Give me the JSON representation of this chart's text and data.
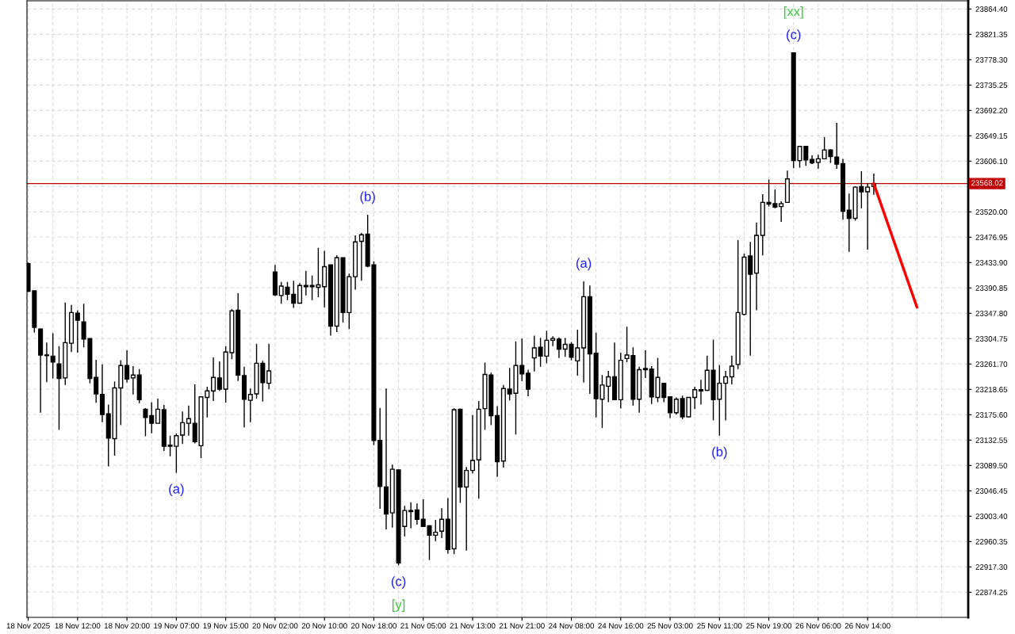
{
  "chart_data": {
    "type": "candlestick",
    "categories": [
      "18 Nov 2025",
      null,
      null,
      null,
      null,
      null,
      null,
      null,
      "18 Nov 12:00",
      null,
      null,
      null,
      null,
      null,
      null,
      null,
      "18 Nov 20:00",
      null,
      null,
      null,
      null,
      null,
      null,
      null,
      "19 Nov 07:00",
      null,
      null,
      null,
      null,
      null,
      null,
      null,
      "19 Nov 15:00",
      null,
      null,
      null,
      null,
      null,
      null,
      null,
      "20 Nov 02:00",
      null,
      null,
      null,
      null,
      null,
      null,
      null,
      "20 Nov 10:00",
      null,
      null,
      null,
      null,
      null,
      null,
      null,
      "20 Nov 18:00",
      null,
      null,
      null,
      null,
      null,
      null,
      null,
      "21 Nov 05:00",
      null,
      null,
      null,
      null,
      null,
      null,
      null,
      "21 Nov 13:00",
      null,
      null,
      null,
      null,
      null,
      null,
      null,
      "21 Nov 21:00",
      null,
      null,
      null,
      null,
      null,
      null,
      null,
      "24 Nov 08:00",
      null,
      null,
      null,
      null,
      null,
      null,
      null,
      "24 Nov 16:00",
      null,
      null,
      null,
      null,
      null,
      null,
      null,
      "25 Nov 03:00",
      null,
      null,
      null,
      null,
      null,
      null,
      null,
      "25 Nov 11:00",
      null,
      null,
      null,
      null,
      null,
      null,
      null,
      "25 Nov 19:00",
      null,
      null,
      null,
      null,
      null,
      null,
      null,
      "26 Nov 06:00",
      null,
      null,
      null,
      null,
      null,
      null,
      null,
      "26 Nov 14:00",
      null,
      null,
      null,
      null,
      null,
      null,
      null,
      null,
      null,
      null,
      null,
      null,
      null,
      null,
      null
    ],
    "ohlc": [
      [
        23432,
        23434,
        23384,
        23385
      ],
      [
        23386,
        23386,
        23315,
        23324
      ],
      [
        23321,
        23322,
        23179,
        23277
      ],
      [
        23277,
        23298,
        23231,
        23276
      ],
      [
        23275,
        23314,
        23237,
        23265
      ],
      [
        23262,
        23292,
        23150,
        23237
      ],
      [
        23238,
        23366,
        23226,
        23298
      ],
      [
        23297,
        23362,
        23282,
        23349
      ],
      [
        23348,
        23353,
        23281,
        23336
      ],
      [
        23333,
        23364,
        23290,
        23304
      ],
      [
        23305,
        23305,
        23229,
        23237
      ],
      [
        23239,
        23269,
        23196,
        23211
      ],
      [
        23210,
        23261,
        23163,
        23176
      ],
      [
        23177,
        23193,
        23088,
        23136
      ],
      [
        23135,
        23232,
        23106,
        23221
      ],
      [
        23221,
        23268,
        23158,
        23259
      ],
      [
        23259,
        23285,
        23230,
        23236
      ],
      [
        23238,
        23258,
        23210,
        23243
      ],
      [
        23243,
        23253,
        23195,
        23201
      ],
      [
        23185,
        23187,
        23139,
        23171
      ],
      [
        23174,
        23197,
        23144,
        23161
      ],
      [
        23161,
        23203,
        23161,
        23185
      ],
      [
        23184,
        23192,
        23114,
        23122
      ],
      [
        23124,
        23140,
        23105,
        23122
      ],
      [
        23122,
        23144,
        23077,
        23140
      ],
      [
        23141,
        23181,
        23126,
        23162
      ],
      [
        23161,
        23191,
        23140,
        23169
      ],
      [
        23161,
        23227,
        23127,
        23130
      ],
      [
        23123,
        23207,
        23102,
        23206
      ],
      [
        23205,
        23223,
        23171,
        23216
      ],
      [
        23216,
        23273,
        23199,
        23239
      ],
      [
        23238,
        23266,
        23216,
        23219
      ],
      [
        23219,
        23292,
        23196,
        23282
      ],
      [
        23281,
        23355,
        23270,
        23352
      ],
      [
        23353,
        23382,
        23233,
        23243
      ],
      [
        23242,
        23257,
        23154,
        23202
      ],
      [
        23200,
        23220,
        23163,
        23210
      ],
      [
        23211,
        23296,
        23203,
        23263
      ],
      [
        23263,
        23267,
        23198,
        23230
      ],
      [
        23229,
        23296,
        23219,
        23250
      ],
      [
        23418,
        23430,
        23377,
        23379
      ],
      [
        23378,
        23401,
        23364,
        23394
      ],
      [
        23392,
        23401,
        23370,
        23380
      ],
      [
        23380,
        23403,
        23357,
        23365
      ],
      [
        23365,
        23399,
        23364,
        23395
      ],
      [
        23395,
        23420,
        23378,
        23393
      ],
      [
        23395,
        23412,
        23370,
        23393
      ],
      [
        23392,
        23459,
        23375,
        23396
      ],
      [
        23393,
        23454,
        23358,
        23427
      ],
      [
        23430,
        23430,
        23310,
        23326
      ],
      [
        23326,
        23446,
        23316,
        23442
      ],
      [
        23442,
        23442,
        23332,
        23349
      ],
      [
        23349,
        23415,
        23321,
        23410
      ],
      [
        23410,
        23480,
        23388,
        23469
      ],
      [
        23470,
        23484,
        23403,
        23481
      ],
      [
        23482,
        23515,
        23426,
        23428
      ],
      [
        23430,
        23436,
        23124,
        23132
      ],
      [
        23132,
        23187,
        23016,
        23054
      ],
      [
        23053,
        23220,
        22981,
        23007
      ],
      [
        23009,
        23091,
        22984,
        23083
      ],
      [
        23082,
        23082,
        22920,
        22924
      ],
      [
        22986,
        23021,
        22969,
        23013
      ],
      [
        23013,
        23027,
        22983,
        23011
      ],
      [
        23014,
        23025,
        22989,
        22998
      ],
      [
        22998,
        23032,
        22986,
        22986
      ],
      [
        22987,
        22988,
        22929,
        22971
      ],
      [
        22971,
        22997,
        22961,
        22976
      ],
      [
        22978,
        23017,
        22966,
        22998
      ],
      [
        22998,
        23034,
        22940,
        22947
      ],
      [
        22948,
        23187,
        22939,
        23184
      ],
      [
        23185,
        23186,
        23026,
        23053
      ],
      [
        23053,
        23087,
        22945,
        23081
      ],
      [
        23081,
        23175,
        23076,
        23098
      ],
      [
        23099,
        23199,
        23033,
        23185
      ],
      [
        23186,
        23264,
        23150,
        23244
      ],
      [
        23243,
        23247,
        23158,
        23174
      ],
      [
        23174,
        23190,
        23070,
        23096
      ],
      [
        23097,
        23226,
        23086,
        23220
      ],
      [
        23219,
        23255,
        23200,
        23211
      ],
      [
        23212,
        23300,
        23142,
        23259
      ],
      [
        23259,
        23305,
        23233,
        23245
      ],
      [
        23246,
        23252,
        23207,
        23219
      ],
      [
        23272,
        23310,
        23249,
        23289
      ],
      [
        23290,
        23306,
        23257,
        23275
      ],
      [
        23275,
        23318,
        23263,
        23302
      ],
      [
        23302,
        23309,
        23292,
        23305
      ],
      [
        23304,
        23307,
        23272,
        23287
      ],
      [
        23287,
        23306,
        23274,
        23295
      ],
      [
        23295,
        23299,
        23268,
        23273
      ],
      [
        23267,
        23320,
        23242,
        23289
      ],
      [
        23289,
        23402,
        23230,
        23376
      ],
      [
        23376,
        23395,
        23211,
        23279
      ],
      [
        23280,
        23315,
        23171,
        23203
      ],
      [
        23202,
        23243,
        23153,
        23226
      ],
      [
        23224,
        23250,
        23197,
        23240
      ],
      [
        23240,
        23298,
        23201,
        23201
      ],
      [
        23201,
        23281,
        23186,
        23268
      ],
      [
        23271,
        23325,
        23265,
        23277
      ],
      [
        23276,
        23290,
        23191,
        23202
      ],
      [
        23202,
        23257,
        23179,
        23252
      ],
      [
        23254,
        23285,
        23238,
        23252
      ],
      [
        23253,
        23258,
        23194,
        23206
      ],
      [
        23205,
        23272,
        23197,
        23239
      ],
      [
        23229,
        23229,
        23197,
        23205
      ],
      [
        23206,
        23206,
        23170,
        23179
      ],
      [
        23179,
        23205,
        23176,
        23202
      ],
      [
        23203,
        23208,
        23168,
        23172
      ],
      [
        23172,
        23205,
        23172,
        23205
      ],
      [
        23205,
        23223,
        23185,
        23218
      ],
      [
        23218,
        23235,
        23193,
        23216
      ],
      [
        23217,
        23276,
        23216,
        23251
      ],
      [
        23251,
        23303,
        23166,
        23201
      ],
      [
        23202,
        23260,
        23140,
        23229
      ],
      [
        23229,
        23250,
        23166,
        23240
      ],
      [
        23240,
        23276,
        23227,
        23258
      ],
      [
        23261,
        23472,
        23253,
        23349
      ],
      [
        23346,
        23449,
        23344,
        23443
      ],
      [
        23445,
        23469,
        23276,
        23414
      ],
      [
        23416,
        23502,
        23353,
        23480
      ],
      [
        23480,
        23550,
        23446,
        23536
      ],
      [
        23536,
        23575,
        23529,
        23533
      ],
      [
        23534,
        23558,
        23526,
        23528
      ],
      [
        23529,
        23538,
        23503,
        23534
      ],
      [
        23536,
        23590,
        23536,
        23576
      ],
      [
        23790,
        23790,
        23594,
        23607
      ],
      [
        23607,
        23632,
        23595,
        23631
      ],
      [
        23631,
        23631,
        23598,
        23608
      ],
      [
        23609,
        23616,
        23601,
        23603
      ],
      [
        23604,
        23617,
        23593,
        23610
      ],
      [
        23610,
        23647,
        23610,
        23625
      ],
      [
        23625,
        23626,
        23603,
        23614
      ],
      [
        23613,
        23671,
        23593,
        23601
      ],
      [
        23602,
        23610,
        23507,
        23521
      ],
      [
        23523,
        23551,
        23452,
        23509
      ],
      [
        23509,
        23563,
        23505,
        23562
      ],
      [
        23563,
        23589,
        23526,
        23554
      ],
      [
        23554,
        23569,
        23456,
        23562
      ],
      [
        23563,
        23585,
        23549,
        23568
      ],
      null,
      null,
      null,
      null,
      null,
      null,
      null,
      null,
      null,
      null,
      null,
      null,
      null,
      null
    ],
    "series": [
      {
        "type": "line",
        "color": "#ff0000",
        "values": [
          null,
          null,
          null,
          null,
          null,
          null,
          null,
          null,
          null,
          null,
          null,
          null,
          null,
          null,
          null,
          null,
          null,
          null,
          null,
          null,
          null,
          null,
          null,
          null,
          null,
          null,
          null,
          null,
          null,
          null,
          null,
          null,
          null,
          null,
          null,
          null,
          null,
          null,
          null,
          null,
          null,
          null,
          null,
          null,
          null,
          null,
          null,
          null,
          null,
          null,
          null,
          null,
          null,
          null,
          null,
          null,
          null,
          null,
          null,
          null,
          null,
          null,
          null,
          null,
          null,
          null,
          null,
          null,
          null,
          null,
          null,
          null,
          null,
          null,
          null,
          null,
          null,
          null,
          null,
          null,
          null,
          null,
          null,
          null,
          null,
          null,
          null,
          null,
          null,
          null,
          null,
          null,
          null,
          null,
          null,
          null,
          null,
          null,
          null,
          null,
          null,
          null,
          null,
          null,
          null,
          null,
          null,
          null,
          null,
          null,
          null,
          null,
          null,
          null,
          null,
          null,
          null,
          null,
          null,
          null,
          null,
          null,
          null,
          null,
          null,
          null,
          null,
          null,
          null,
          null,
          null,
          null,
          null,
          null,
          null,
          null,
          null,
          23568,
          null,
          null,
          null,
          null,
          null,
          null,
          23358,
          null,
          null,
          null,
          null,
          null,
          null,
          null
        ]
      }
    ],
    "ylim": [
      22831.6,
      23878.3
    ],
    "yticks": [
      {
        "value": 22874.25,
        "label": "22874.25"
      },
      {
        "value": 22917.3,
        "label": "22917.30"
      },
      {
        "value": 22960.35,
        "label": "22960.35"
      },
      {
        "value": 23003.4,
        "label": "23003.40"
      },
      {
        "value": 23046.45,
        "label": "23046.45"
      },
      {
        "value": 23089.5,
        "label": "23089.50"
      },
      {
        "value": 23132.55,
        "label": "23132.55"
      },
      {
        "value": 23175.6,
        "label": "23175.60"
      },
      {
        "value": 23218.65,
        "label": "23218.65"
      },
      {
        "value": 23261.7,
        "label": "23261.70"
      },
      {
        "value": 23304.75,
        "label": "23304.75"
      },
      {
        "value": 23347.8,
        "label": "23347.80"
      },
      {
        "value": 23390.85,
        "label": "23390.85"
      },
      {
        "value": 23433.9,
        "label": "23433.90"
      },
      {
        "value": 23476.95,
        "label": "23476.95"
      },
      {
        "value": 23520.0,
        "label": "23520.00"
      },
      {
        "value": 23563.05,
        "label": null
      },
      {
        "value": 23606.1,
        "label": "23606.10"
      },
      {
        "value": 23649.15,
        "label": "23649.15"
      },
      {
        "value": 23692.2,
        "label": "23692.20"
      },
      {
        "value": 23735.25,
        "label": "23735.25"
      },
      {
        "value": 23778.3,
        "label": "23778.30"
      },
      {
        "value": 23821.35,
        "label": "23821.35"
      },
      {
        "value": 23864.4,
        "label": "23864.40"
      }
    ],
    "grid": true,
    "ref_lines": [
      {
        "axis": "y",
        "value": 23568.02,
        "label": "23568.02",
        "color": "#c00000"
      }
    ],
    "annotations": [
      "(a)",
      "(b)",
      "(c)",
      "[y]",
      "(a)",
      "(b)",
      "(c)",
      "[xx]"
    ]
  }
}
